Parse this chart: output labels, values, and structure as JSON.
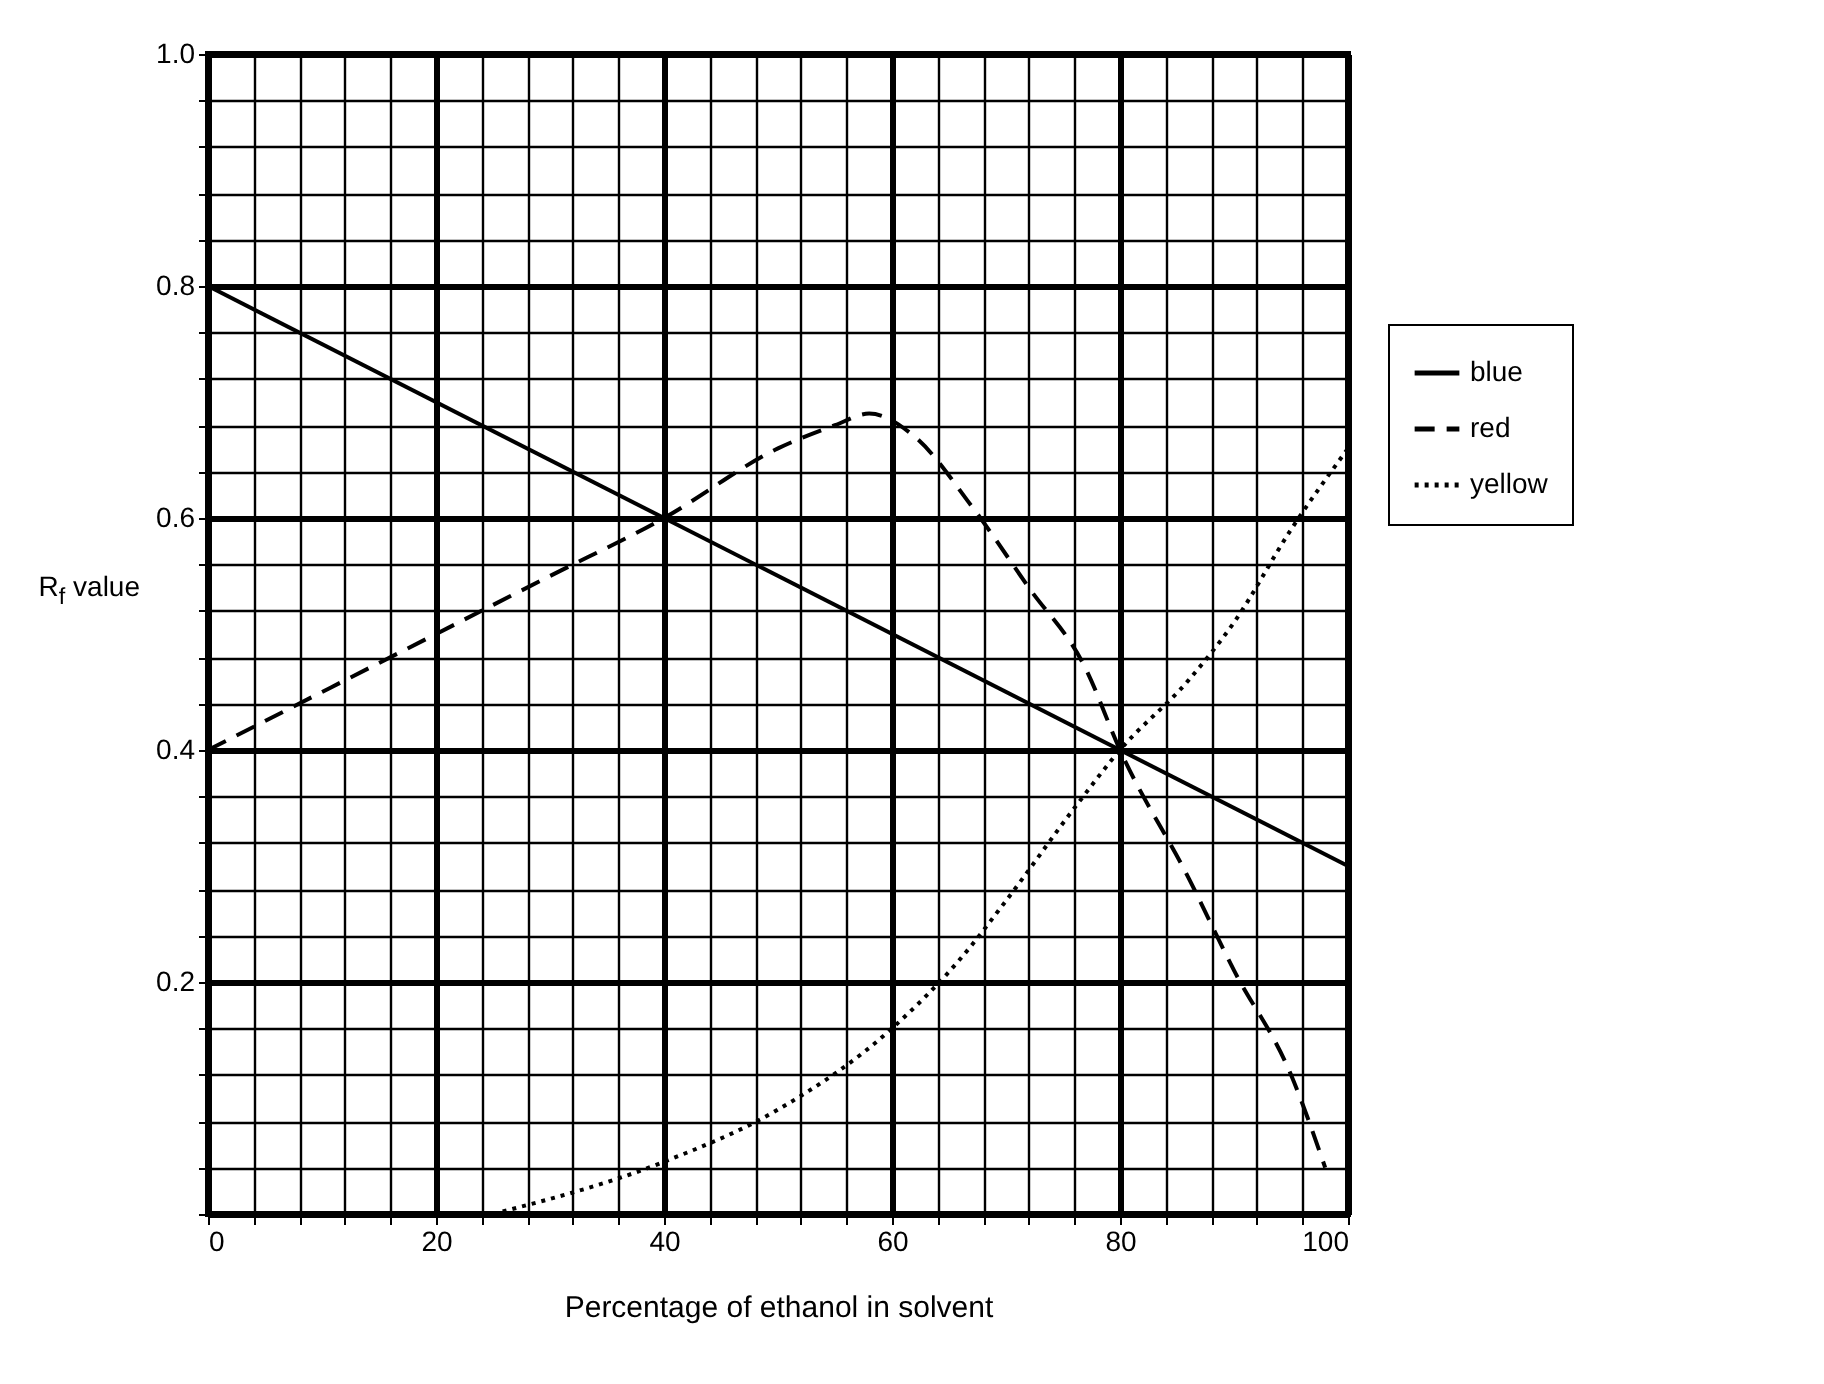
{
  "chart_data": {
    "type": "line",
    "xlabel": "Percentage of ethanol in solvent",
    "ylabel": "R$_{f}$ value",
    "xlim": [
      0,
      100
    ],
    "xticks": [
      0,
      20,
      40,
      60,
      80,
      100
    ],
    "ylim": [
      0,
      1
    ],
    "yticks": [
      0.2,
      0.4,
      0.6,
      0.8,
      {
        "value": 1,
        "label": "1.0"
      }
    ],
    "grid": true,
    "legend": "right",
    "marker": "none",
    "series": [
      {
        "name": "blue",
        "color": "#000000",
        "line_style": "solid",
        "x": [
          0,
          100
        ],
        "values": [
          0.8,
          0.3
        ]
      },
      {
        "name": "red",
        "color": "#000000",
        "line_style": "dashed",
        "x": [
          0,
          10,
          20,
          30,
          40,
          50,
          55,
          58,
          62,
          67,
          72,
          77,
          80,
          86,
          90,
          95,
          98
        ],
        "values": [
          0.4,
          0.45,
          0.5,
          0.55,
          0.6,
          0.66,
          0.68,
          0.69,
          0.67,
          0.61,
          0.54,
          0.47,
          0.4,
          0.29,
          0.21,
          0.12,
          0.04
        ]
      },
      {
        "name": "yellow",
        "color": "#000000",
        "line_style": "dotted",
        "x": [
          25,
          40,
          50,
          60,
          66,
          70,
          76,
          80,
          86,
          90,
          95,
          100
        ],
        "values": [
          0,
          0.045,
          0.09,
          0.16,
          0.22,
          0.27,
          0.35,
          0.4,
          0.46,
          0.51,
          0.59,
          0.66
        ]
      }
    ]
  }
}
